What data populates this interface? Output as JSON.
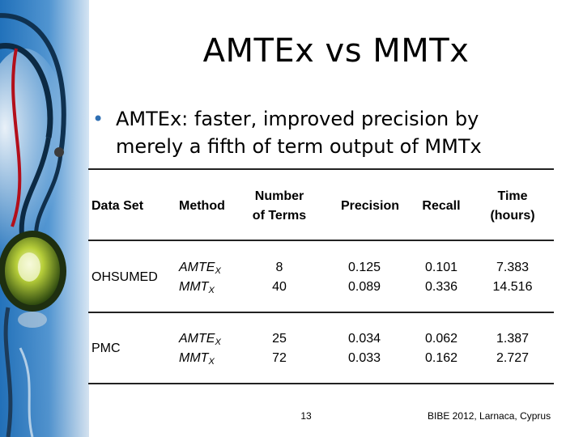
{
  "slide": {
    "title": "AMTEx vs MMTx",
    "bullet": {
      "symbol": "•",
      "line1": "AMTEx: faster, improved precision by",
      "line2": "merely a fifth of term output of MMTx"
    },
    "table": {
      "headers": {
        "data_set": "Data Set",
        "method": "Method",
        "terms_line1": "Number",
        "terms_line2": "of Terms",
        "precision": "Precision",
        "recall": "Recall",
        "time_line1": "Time",
        "time_line2": "(hours)"
      },
      "rows": [
        {
          "data_set": "OHSUMED",
          "methods": [
            {
              "base": "AMTE",
              "sub": "X"
            },
            {
              "base": "MMT",
              "sub": "X"
            }
          ],
          "terms": [
            "8",
            "40"
          ],
          "precision": [
            "0.125",
            "0.089"
          ],
          "recall": [
            "0.101",
            "0.336"
          ],
          "time": [
            "7.383",
            "14.516"
          ]
        },
        {
          "data_set": "PMC",
          "methods": [
            {
              "base": "AMTE",
              "sub": "X"
            },
            {
              "base": "MMT",
              "sub": "X"
            }
          ],
          "terms": [
            "25",
            "72"
          ],
          "precision": [
            "0.034",
            "0.033"
          ],
          "recall": [
            "0.062",
            "0.162"
          ],
          "time": [
            "1.387",
            "2.727"
          ]
        }
      ]
    },
    "footer": {
      "page_number": "13",
      "conference": "BIBE 2012, Larnaca, Cyprus"
    }
  },
  "colors": {
    "accent_blue": "#2f6fb3",
    "rule": "#222222"
  }
}
